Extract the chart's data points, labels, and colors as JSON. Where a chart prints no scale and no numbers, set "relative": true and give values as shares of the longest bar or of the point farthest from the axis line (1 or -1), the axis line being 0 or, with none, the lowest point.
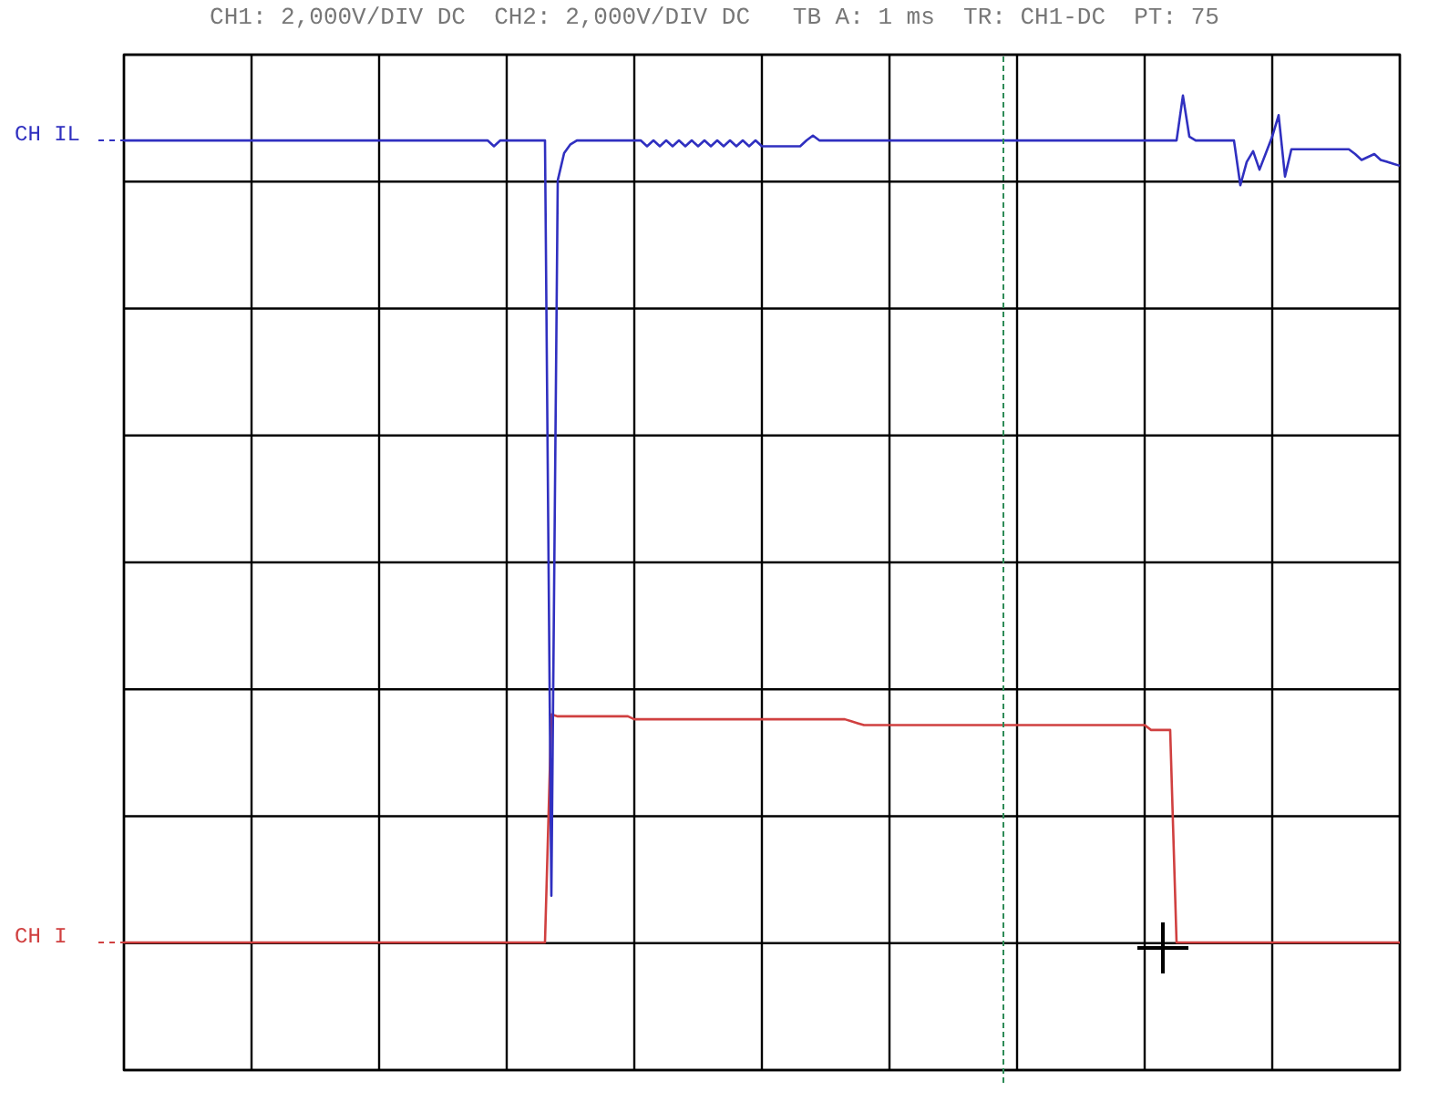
{
  "chart_data": {
    "type": "line",
    "title": "CH1: 2,000V/DIV DC  CH2: 2,000V/DIV DC   TB A: 1 ms  TR: CH1-DC  PT: 75",
    "relative": true,
    "grid": true,
    "legend": "left",
    "marker": "none",
    "line_style": "solid",
    "categories": [
      null,
      null,
      null,
      null,
      null,
      null,
      null,
      null,
      null,
      null,
      null,
      null,
      null,
      null,
      null,
      null,
      null,
      null,
      null,
      null,
      null,
      null,
      null,
      null,
      null,
      null,
      null,
      null,
      null,
      null,
      null,
      null,
      null,
      null,
      null,
      null,
      null,
      null,
      null,
      null,
      null,
      null,
      null,
      null,
      null,
      null,
      null,
      null,
      null,
      null,
      null,
      null,
      null,
      null,
      null,
      null,
      null,
      null,
      null,
      null,
      null,
      null,
      null,
      null,
      null,
      null,
      null,
      null,
      null,
      null,
      null,
      null,
      null,
      null,
      null,
      null,
      null,
      null,
      null,
      null,
      null,
      null,
      null,
      null,
      null,
      null,
      null,
      null,
      null,
      null,
      null,
      null,
      null,
      null,
      null,
      null,
      null,
      null,
      null,
      null,
      null,
      null,
      null,
      null,
      null,
      null,
      null,
      null,
      null,
      null,
      null,
      null,
      null,
      null,
      null,
      null,
      null,
      null,
      null,
      null,
      null,
      null,
      null,
      null,
      null,
      null,
      null,
      null,
      null,
      null,
      null,
      null,
      null,
      null,
      null,
      null,
      null,
      null,
      null,
      null,
      null,
      null,
      null,
      null,
      null,
      null,
      null,
      null,
      null,
      null,
      null,
      null,
      null,
      null,
      null,
      null,
      null,
      null,
      null,
      null,
      null,
      null,
      null,
      null,
      null,
      null,
      null,
      null,
      null,
      null,
      null,
      null,
      null,
      null,
      null,
      null,
      null,
      null,
      null,
      null,
      null,
      null,
      null,
      null,
      null,
      null,
      null,
      null,
      null,
      null,
      null,
      null,
      null,
      null,
      null,
      null,
      null,
      null,
      null,
      null,
      null
    ],
    "series": [
      {
        "name": "CH IL",
        "color": "#3030c0",
        "values": [
          0.954,
          0.954,
          0.954,
          0.954,
          0.954,
          0.954,
          0.954,
          0.954,
          0.954,
          0.954,
          0.954,
          0.954,
          0.954,
          0.954,
          0.954,
          0.954,
          0.954,
          0.954,
          0.954,
          0.954,
          0.954,
          0.954,
          0.954,
          0.954,
          0.954,
          0.954,
          0.954,
          0.954,
          0.954,
          0.954,
          0.954,
          0.954,
          0.954,
          0.954,
          0.954,
          0.954,
          0.954,
          0.954,
          0.954,
          0.954,
          0.954,
          0.954,
          0.954,
          0.954,
          0.954,
          0.954,
          0.954,
          0.954,
          0.954,
          0.954,
          0.954,
          0.954,
          0.954,
          0.954,
          0.954,
          0.954,
          0.954,
          0.954,
          0.948,
          0.954,
          0.954,
          0.954,
          0.954,
          0.954,
          0.954,
          0.954,
          0.954,
          0.179,
          0.913,
          0.941,
          0.95,
          0.954,
          0.954,
          0.954,
          0.954,
          0.954,
          0.954,
          0.954,
          0.954,
          0.954,
          0.954,
          0.954,
          0.948,
          0.954,
          0.948,
          0.954,
          0.948,
          0.954,
          0.948,
          0.954,
          0.948,
          0.954,
          0.948,
          0.954,
          0.948,
          0.954,
          0.948,
          0.954,
          0.948,
          0.954,
          0.948,
          0.948,
          0.948,
          0.948,
          0.948,
          0.948,
          0.948,
          0.954,
          0.959,
          0.954,
          0.954,
          0.954,
          0.954,
          0.954,
          0.954,
          0.954,
          0.954,
          0.954,
          0.954,
          0.954,
          0.954,
          0.954,
          0.954,
          0.954,
          0.954,
          0.954,
          0.954,
          0.954,
          0.954,
          0.954,
          0.954,
          0.954,
          0.954,
          0.954,
          0.954,
          0.954,
          0.954,
          0.954,
          0.954,
          0.954,
          0.954,
          0.954,
          0.954,
          0.954,
          0.954,
          0.954,
          0.954,
          0.954,
          0.954,
          0.954,
          0.954,
          0.954,
          0.954,
          0.954,
          0.954,
          0.954,
          0.954,
          0.954,
          0.954,
          0.954,
          0.954,
          0.954,
          0.954,
          0.954,
          0.954,
          0.954,
          1,
          0.958,
          0.954,
          0.954,
          0.954,
          0.954,
          0.954,
          0.954,
          0.954,
          0.908,
          0.932,
          0.943,
          0.924,
          0.941,
          0.958,
          0.98,
          0.917,
          0.945,
          0.945,
          0.945,
          0.945,
          0.945,
          0.945,
          0.945,
          0.945,
          0.945,
          0.945,
          0.94,
          0.934,
          0.937,
          0.94,
          0.934,
          0.932,
          0.93,
          0.928
        ]
      },
      {
        "name": "CH I",
        "color": "#d04040",
        "values": [
          0.131,
          0.131,
          0.131,
          0.131,
          0.131,
          0.131,
          0.131,
          0.131,
          0.131,
          0.131,
          0.131,
          0.131,
          0.131,
          0.131,
          0.131,
          0.131,
          0.131,
          0.131,
          0.131,
          0.131,
          0.131,
          0.131,
          0.131,
          0.131,
          0.131,
          0.131,
          0.131,
          0.131,
          0.131,
          0.131,
          0.131,
          0.131,
          0.131,
          0.131,
          0.131,
          0.131,
          0.131,
          0.131,
          0.131,
          0.131,
          0.131,
          0.131,
          0.131,
          0.131,
          0.131,
          0.131,
          0.131,
          0.131,
          0.131,
          0.131,
          0.131,
          0.131,
          0.131,
          0.131,
          0.131,
          0.131,
          0.131,
          0.131,
          0.131,
          0.131,
          0.131,
          0.131,
          0.131,
          0.131,
          0.131,
          0.131,
          0.131,
          0.365,
          0.363,
          0.363,
          0.363,
          0.363,
          0.363,
          0.363,
          0.363,
          0.363,
          0.363,
          0.363,
          0.363,
          0.363,
          0.36,
          0.36,
          0.36,
          0.36,
          0.36,
          0.36,
          0.36,
          0.36,
          0.36,
          0.36,
          0.36,
          0.36,
          0.36,
          0.36,
          0.36,
          0.36,
          0.36,
          0.36,
          0.36,
          0.36,
          0.36,
          0.36,
          0.36,
          0.36,
          0.36,
          0.36,
          0.36,
          0.36,
          0.36,
          0.36,
          0.36,
          0.36,
          0.36,
          0.36,
          0.358,
          0.356,
          0.354,
          0.354,
          0.354,
          0.354,
          0.354,
          0.354,
          0.354,
          0.354,
          0.354,
          0.354,
          0.354,
          0.354,
          0.354,
          0.354,
          0.354,
          0.354,
          0.354,
          0.354,
          0.354,
          0.354,
          0.354,
          0.354,
          0.354,
          0.354,
          0.354,
          0.354,
          0.354,
          0.354,
          0.354,
          0.354,
          0.354,
          0.354,
          0.354,
          0.354,
          0.354,
          0.354,
          0.354,
          0.354,
          0.354,
          0.354,
          0.354,
          0.354,
          0.354,
          0.354,
          0.354,
          0.349,
          0.349,
          0.349,
          0.349,
          0.131,
          0.131,
          0.131,
          0.131,
          0.131,
          0.131,
          0.131,
          0.131,
          0.131,
          0.131,
          0.131,
          0.131,
          0.131,
          0.131,
          0.131,
          0.131,
          0.131,
          0.131,
          0.131,
          0.131,
          0.131,
          0.131,
          0.131,
          0.131,
          0.131,
          0.131,
          0.131,
          0.131,
          0.131,
          0.131,
          0.131,
          0.131,
          0.131,
          0.131,
          0.131,
          0.131
        ]
      }
    ]
  }
}
